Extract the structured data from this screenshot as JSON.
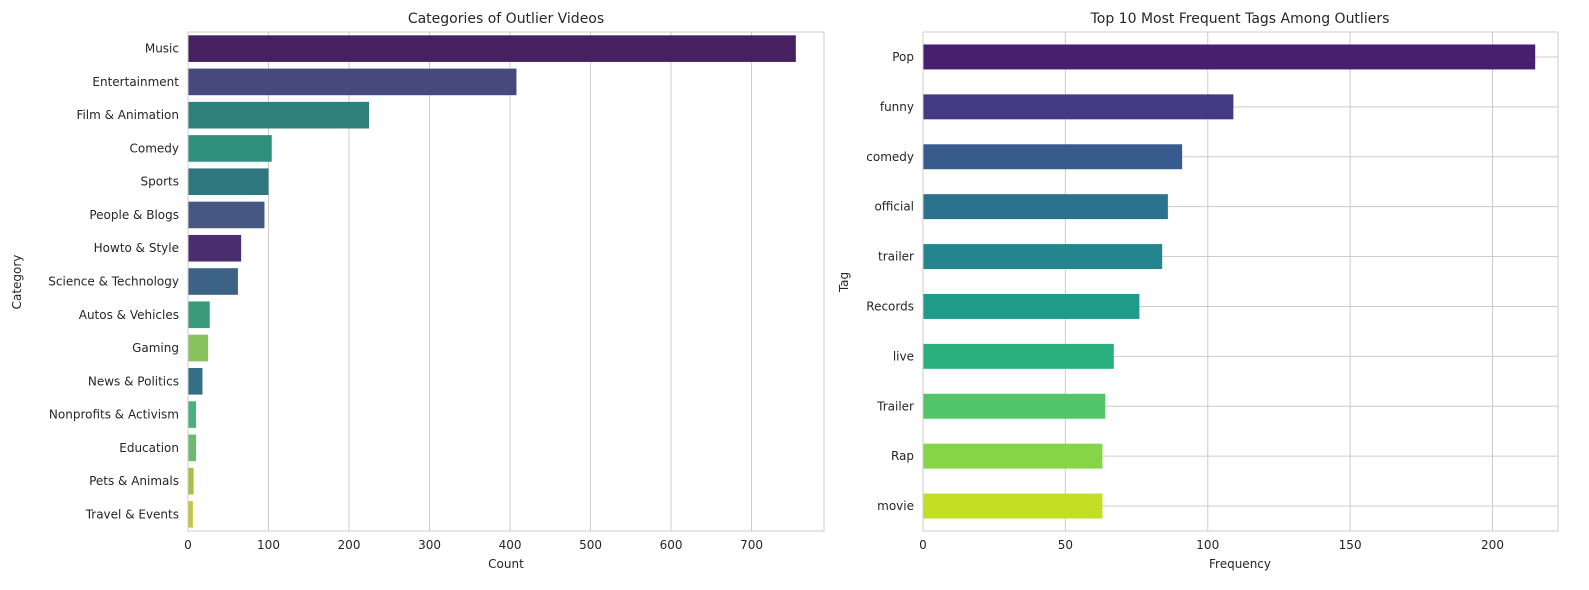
{
  "chart_data": [
    {
      "type": "bar",
      "orientation": "horizontal",
      "title": "Categories of Outlier Videos",
      "xlabel": "Count",
      "ylabel": "Category",
      "xlim": [
        0,
        790
      ],
      "xticks": [
        0,
        100,
        200,
        300,
        400,
        500,
        600,
        700
      ],
      "grid": true,
      "categories": [
        "Music",
        "Entertainment",
        "Film & Animation",
        "Comedy",
        "Sports",
        "People & Blogs",
        "Howto & Style",
        "Science & Technology",
        "Autos & Vehicles",
        "Gaming",
        "News & Politics",
        "Nonprofits & Activism",
        "Education",
        "Pets & Animals",
        "Travel & Events"
      ],
      "values": [
        755,
        408,
        225,
        104,
        100,
        95,
        66,
        62,
        27,
        25,
        18,
        10,
        10,
        7,
        6
      ],
      "colors": [
        "#47215f",
        "#46497d",
        "#2e817b",
        "#30907e",
        "#30767f",
        "#465881",
        "#4a2e6f",
        "#3c6385",
        "#3a9b7b",
        "#86c35c",
        "#356f87",
        "#47b27f",
        "#6bbb6e",
        "#a2c242",
        "#c3c83b"
      ]
    },
    {
      "type": "bar",
      "orientation": "horizontal",
      "title": "Top 10 Most Frequent Tags Among Outliers",
      "xlabel": "Frequency",
      "ylabel": "Tag",
      "xlim": [
        0,
        223
      ],
      "xticks": [
        0,
        50,
        100,
        150,
        200
      ],
      "grid": true,
      "categories": [
        "Pop",
        "funny",
        "comedy",
        "official",
        "trailer",
        "Records",
        "live",
        "Trailer",
        "Rap",
        "movie"
      ],
      "values": [
        215,
        109,
        91,
        86,
        84,
        76,
        67,
        64,
        63,
        63
      ],
      "colors": [
        "#481f70",
        "#443983",
        "#365b8c",
        "#2c718e",
        "#25858e",
        "#1e9b8a",
        "#2ab07f",
        "#52c569",
        "#86d549",
        "#c2df23"
      ]
    }
  ]
}
